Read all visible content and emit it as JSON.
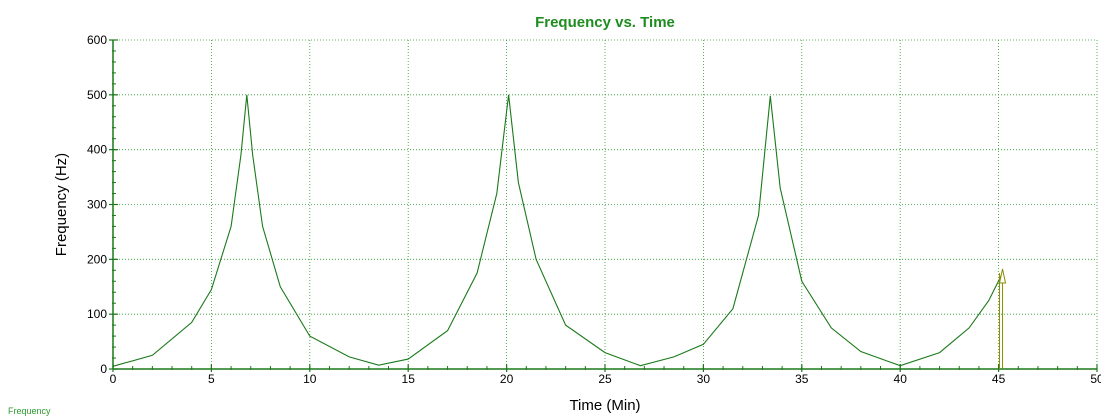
{
  "chart_data": {
    "type": "line",
    "title": "Frequency vs. Time",
    "xlabel": "Time (Min)",
    "ylabel": "Frequency (Hz)",
    "xlim": [
      0,
      50
    ],
    "ylim": [
      0,
      600
    ],
    "x_ticks": [
      0,
      5,
      10,
      15,
      20,
      25,
      30,
      35,
      40,
      45,
      50
    ],
    "y_ticks": [
      0,
      100,
      200,
      300,
      400,
      500,
      600
    ],
    "grid": true,
    "legend": "bottom-left",
    "series": [
      {
        "name": "Frequency",
        "color": "#1a7a1a",
        "x": [
          0,
          2,
          4,
          5,
          6,
          6.5,
          6.8,
          7.1,
          7.6,
          8.5,
          10,
          12,
          13.5,
          15,
          17,
          18.5,
          19.5,
          20.1,
          20.6,
          21.5,
          23,
          25,
          26.8,
          28.5,
          30,
          31.5,
          32.8,
          33.4,
          33.9,
          35,
          36.5,
          38,
          40,
          42,
          43.5,
          44.5,
          45.2
        ],
        "values": [
          5,
          25,
          85,
          145,
          260,
          390,
          500,
          390,
          260,
          150,
          60,
          22,
          7,
          18,
          70,
          175,
          320,
          500,
          340,
          200,
          80,
          30,
          6,
          22,
          45,
          110,
          280,
          498,
          330,
          160,
          75,
          32,
          6,
          30,
          75,
          125,
          175
        ]
      }
    ],
    "marker": {
      "x": 45.2,
      "y": 175,
      "symbol": "triangle",
      "color": "#8c8c00"
    }
  }
}
